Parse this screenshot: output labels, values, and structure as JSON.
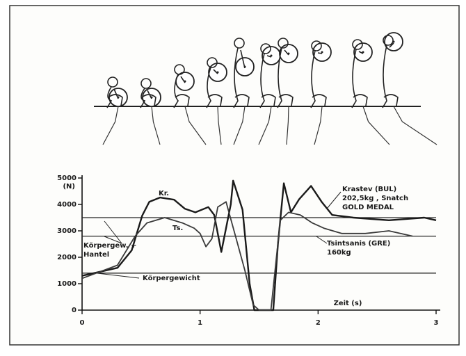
{
  "chart_data": {
    "type": "line",
    "y_unit_label": "(N)",
    "xlabel": "Zeit (s)",
    "xlim": [
      0,
      3
    ],
    "xticks": [
      0,
      1,
      2,
      3
    ],
    "ylim": [
      0,
      5000
    ],
    "yticks": [
      0,
      1000,
      2000,
      3000,
      4000,
      5000
    ],
    "reference_lines": [
      3500,
      2800,
      1400
    ],
    "series": [
      {
        "name": "Kr.",
        "color": "#1a1a1a",
        "x": [
          0,
          0.3,
          0.42,
          0.51,
          0.57,
          0.66,
          0.78,
          0.87,
          0.96,
          1.07,
          1.12,
          1.18,
          1.26,
          1.28,
          1.36,
          1.42,
          1.46,
          1.62,
          1.66,
          1.71,
          1.77,
          1.84,
          1.94,
          2.03,
          2.12,
          2.3,
          2.6,
          2.9,
          3
        ],
        "values": [
          1300,
          1600,
          2260,
          3580,
          4100,
          4260,
          4180,
          3840,
          3700,
          3900,
          3600,
          2200,
          4000,
          4900,
          3800,
          1000,
          0,
          0,
          2500,
          4800,
          3700,
          4200,
          4700,
          4100,
          3600,
          3500,
          3400,
          3500,
          3400
        ]
      },
      {
        "name": "Ts.",
        "color": "#3a3a3a",
        "x": [
          0,
          0.3,
          0.45,
          0.55,
          0.7,
          0.85,
          0.95,
          1.0,
          1.05,
          1.1,
          1.15,
          1.22,
          1.3,
          1.38,
          1.45,
          1.5,
          1.6,
          1.68,
          1.75,
          1.85,
          1.95,
          2.05,
          2.2,
          2.4,
          2.6,
          2.8
        ],
        "values": [
          1200,
          1700,
          2800,
          3300,
          3500,
          3300,
          3100,
          2900,
          2400,
          2700,
          3900,
          4100,
          2800,
          1500,
          200,
          0,
          0,
          3400,
          3700,
          3600,
          3300,
          3100,
          2900,
          2900,
          3000,
          2800
        ]
      }
    ],
    "annotations": [
      "Krastev (BUL)",
      "202,5kg , Snatch",
      "GOLD MEDAL",
      "Tsintsanis (GRE)",
      "160kg",
      "Körpergew. +",
      "Hantel",
      "Körpergewicht"
    ]
  }
}
